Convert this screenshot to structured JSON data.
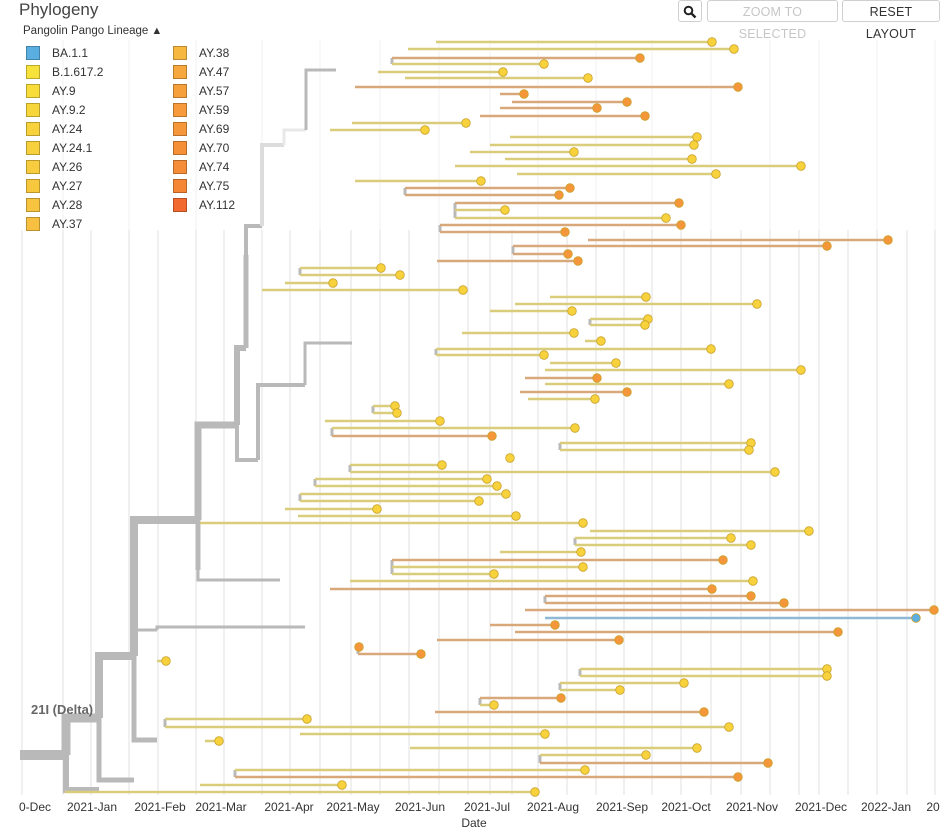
{
  "panel": {
    "title": "Phylogeny"
  },
  "toolbar": {
    "zoom_selected": "ZOOM TO SELECTED",
    "reset_layout": "RESET LAYOUT",
    "zoom_icon": "magnifier-icon"
  },
  "legend": {
    "title": "Pangolin Pango Lineage",
    "items": [
      {
        "label": "BA.1.1",
        "color": "#5aaee0"
      },
      {
        "label": "B.1.617.2",
        "color": "#f7e23c"
      },
      {
        "label": "AY.9",
        "color": "#f7dc3a"
      },
      {
        "label": "AY.9.2",
        "color": "#f7d63c"
      },
      {
        "label": "AY.24",
        "color": "#f7d23c"
      },
      {
        "label": "AY.24.1",
        "color": "#f7d03e"
      },
      {
        "label": "AY.26",
        "color": "#f7cc3e"
      },
      {
        "label": "AY.27",
        "color": "#f7c83e"
      },
      {
        "label": "AY.28",
        "color": "#f7c440"
      },
      {
        "label": "AY.37",
        "color": "#f7c040"
      },
      {
        "label": "AY.38",
        "color": "#f7b83f"
      },
      {
        "label": "AY.47",
        "color": "#f6a83e"
      },
      {
        "label": "AY.57",
        "color": "#f6a03c"
      },
      {
        "label": "AY.59",
        "color": "#f69a3b"
      },
      {
        "label": "AY.69",
        "color": "#f6963a"
      },
      {
        "label": "AY.70",
        "color": "#f59038"
      },
      {
        "label": "AY.74",
        "color": "#f58c37"
      },
      {
        "label": "AY.75",
        "color": "#f58636"
      },
      {
        "label": "AY.112",
        "color": "#f26a2e"
      }
    ]
  },
  "clade_label": "21I (Delta)",
  "axis": {
    "title": "Date",
    "ticks": [
      "0-Dec",
      "2021-Jan",
      "2021-Feb",
      "2021-Mar",
      "2021-Apr",
      "2021-May",
      "2021-Jun",
      "2021-Jul",
      "2021-Aug",
      "2021-Sep",
      "2021-Oct",
      "2021-Nov",
      "2021-Dec",
      "2022-Jan",
      "20"
    ]
  },
  "colors": {
    "branch": "#b9b9b9",
    "grid": "#e6e6e6",
    "tip_yellow": "#f7d23c",
    "tip_orange": "#f6963a",
    "tip_blue": "#5aaee0"
  }
}
